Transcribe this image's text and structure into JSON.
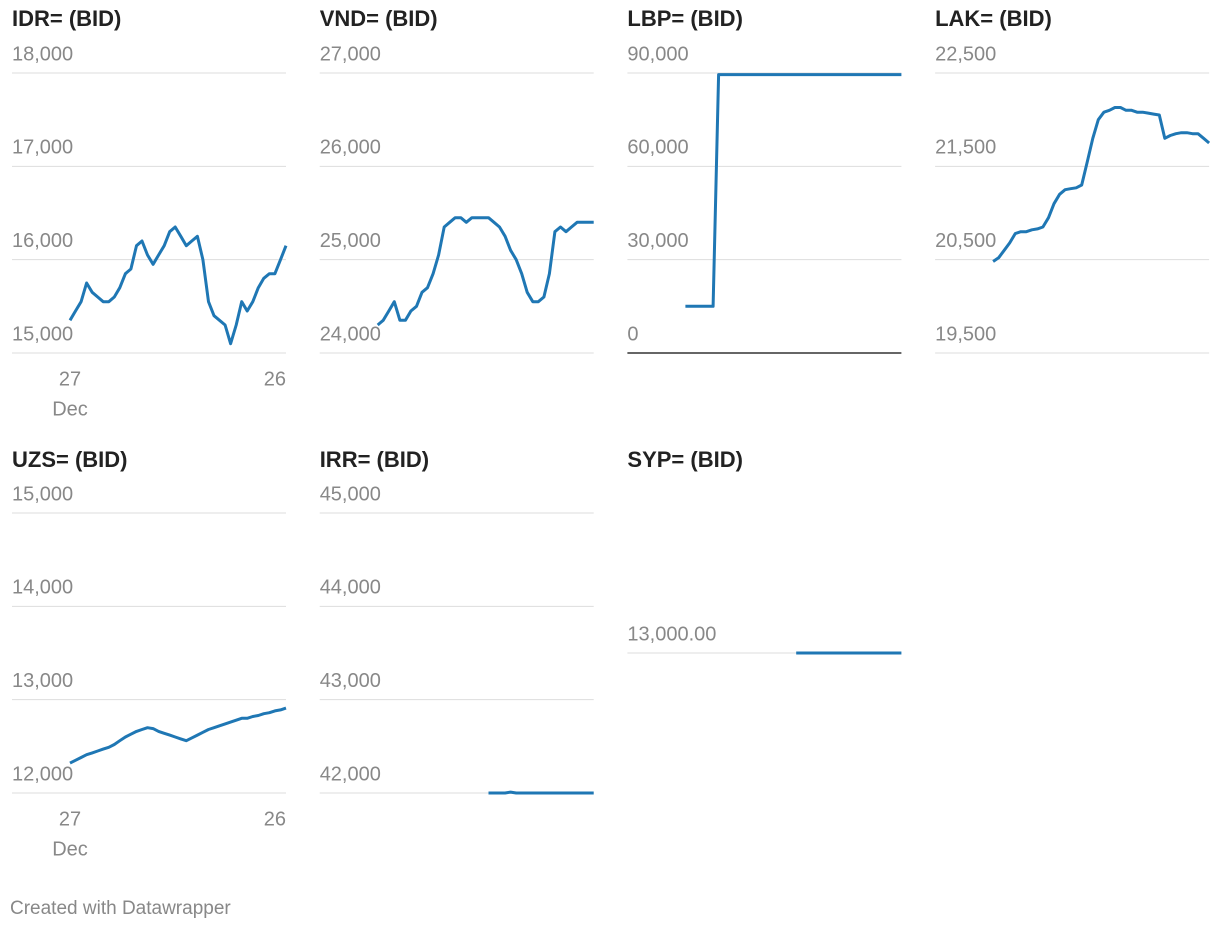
{
  "chart_data": [
    {
      "type": "line",
      "title": "IDR= (BID)",
      "color": "#1f77b4",
      "grid": true,
      "categories": [
        "27",
        null,
        null,
        null,
        null,
        null,
        null,
        null,
        null,
        null,
        null,
        null,
        null,
        null,
        null,
        null,
        null,
        null,
        null,
        null,
        null,
        null,
        null,
        null,
        null,
        null,
        null,
        null,
        null,
        null,
        null,
        null,
        null,
        null,
        null,
        null,
        null,
        null,
        null,
        "26"
      ],
      "x_month": "Dec",
      "values": [
        15350,
        15450,
        15550,
        15750,
        15650,
        15600,
        15550,
        15550,
        15600,
        15700,
        15850,
        15900,
        16150,
        16200,
        16050,
        15950,
        16050,
        16150,
        16300,
        16350,
        16250,
        16150,
        16200,
        16250,
        16000,
        15550,
        15400,
        15350,
        15300,
        15100,
        15300,
        15550,
        15450,
        15550,
        15700,
        15800,
        15850,
        15850,
        16000,
        16150
      ],
      "ylim": [
        15000,
        18000
      ],
      "yticks": [
        {
          "value": 15000,
          "label": "15,000"
        },
        {
          "value": 16000,
          "label": "16,000"
        },
        {
          "value": 17000,
          "label": "17,000"
        },
        {
          "value": 18000,
          "label": "18,000"
        }
      ]
    },
    {
      "type": "line",
      "title": "VND= (BID)",
      "color": "#1f77b4",
      "grid": true,
      "values": [
        24300,
        24350,
        24450,
        24550,
        24350,
        24350,
        24450,
        24500,
        24650,
        24700,
        24850,
        25050,
        25350,
        25400,
        25450,
        25450,
        25400,
        25450,
        25450,
        25450,
        25450,
        25400,
        25350,
        25250,
        25100,
        25000,
        24850,
        24650,
        24550,
        24550,
        24600,
        24850,
        25300,
        25350,
        25300,
        25350,
        25400,
        25400,
        25400,
        25400
      ],
      "ylim": [
        24000,
        27000
      ],
      "yticks": [
        {
          "value": 24000,
          "label": "24,000"
        },
        {
          "value": 25000,
          "label": "25,000"
        },
        {
          "value": 26000,
          "label": "26,000"
        },
        {
          "value": 27000,
          "label": "27,000"
        }
      ]
    },
    {
      "type": "line",
      "title": "LBP= (BID)",
      "color": "#1f77b4",
      "grid": true,
      "values": [
        15000,
        15000,
        15000,
        15000,
        15000,
        15000,
        89500,
        89500,
        89500,
        89500,
        89500,
        89500,
        89500,
        89500,
        89500,
        89500,
        89500,
        89500,
        89500,
        89500,
        89500,
        89500,
        89500,
        89500,
        89500,
        89500,
        89500,
        89500,
        89500,
        89500,
        89500,
        89500,
        89500,
        89500,
        89500,
        89500,
        89500,
        89500,
        89500,
        89500
      ],
      "ylim": [
        0,
        90000
      ],
      "yticks": [
        0,
        {
          "value": 30000,
          "label": "30,000"
        },
        {
          "value": 60000,
          "label": "60,000"
        },
        {
          "value": 90000,
          "label": "90,000"
        }
      ]
    },
    {
      "type": "line",
      "title": "LAK= (BID)",
      "color": "#1f77b4",
      "grid": true,
      "values": [
        20480,
        20520,
        20600,
        20680,
        20780,
        20800,
        20800,
        20820,
        20830,
        20850,
        20950,
        21100,
        21200,
        21250,
        21260,
        21270,
        21300,
        21550,
        21800,
        22000,
        22080,
        22100,
        22130,
        22130,
        22100,
        22100,
        22080,
        22080,
        22070,
        22060,
        22050,
        21800,
        21830,
        21850,
        21860,
        21860,
        21850,
        21850,
        21800,
        21750
      ],
      "ylim": [
        19500,
        22500
      ],
      "yticks": [
        {
          "value": 19500,
          "label": "19,500"
        },
        {
          "value": 20500,
          "label": "20,500"
        },
        {
          "value": 21500,
          "label": "21,500"
        },
        {
          "value": 22500,
          "label": "22,500"
        }
      ]
    },
    {
      "type": "line",
      "title": "UZS= (BID)",
      "color": "#1f77b4",
      "grid": true,
      "categories": [
        "27",
        null,
        null,
        null,
        null,
        null,
        null,
        null,
        null,
        null,
        null,
        null,
        null,
        null,
        null,
        null,
        null,
        null,
        null,
        null,
        null,
        null,
        null,
        null,
        null,
        null,
        null,
        null,
        null,
        null,
        null,
        null,
        null,
        null,
        null,
        null,
        null,
        null,
        null,
        "26"
      ],
      "x_month": "Dec",
      "values": [
        12320,
        12350,
        12380,
        12410,
        12430,
        12450,
        12470,
        12490,
        12520,
        12560,
        12600,
        12630,
        12660,
        12680,
        12700,
        12690,
        12660,
        12640,
        12620,
        12600,
        12580,
        12560,
        12590,
        12620,
        12650,
        12680,
        12700,
        12720,
        12740,
        12760,
        12780,
        12800,
        12800,
        12820,
        12830,
        12850,
        12860,
        12880,
        12890,
        12910
      ],
      "ylim": [
        12000,
        15000
      ],
      "yticks": [
        {
          "value": 12000,
          "label": "12,000"
        },
        {
          "value": 13000,
          "label": "13,000"
        },
        {
          "value": 14000,
          "label": "14,000"
        },
        {
          "value": 15000,
          "label": "15,000"
        }
      ]
    },
    {
      "type": "line",
      "title": "IRR= (BID)",
      "color": "#1f77b4",
      "grid": true,
      "values": [
        null,
        null,
        null,
        null,
        null,
        null,
        null,
        null,
        null,
        null,
        null,
        null,
        null,
        null,
        null,
        null,
        null,
        null,
        null,
        null,
        42000,
        42000,
        42000,
        42000,
        42010,
        42000,
        42000,
        42000,
        42000,
        42000,
        42000,
        42000,
        42000,
        42000,
        42000,
        42000,
        42000,
        42000,
        42000,
        42000
      ],
      "ylim": [
        42000,
        45000
      ],
      "yticks": [
        {
          "value": 42000,
          "label": "42,000"
        },
        {
          "value": 43000,
          "label": "43,000"
        },
        {
          "value": 44000,
          "label": "44,000"
        },
        {
          "value": 45000,
          "label": "45,000"
        }
      ]
    },
    {
      "type": "line",
      "title": "SYP= (BID)",
      "color": "#1f77b4",
      "grid": true,
      "values": [
        null,
        null,
        null,
        null,
        null,
        null,
        null,
        null,
        null,
        null,
        null,
        null,
        null,
        null,
        null,
        null,
        null,
        null,
        null,
        null,
        13000,
        13000,
        13000,
        13000,
        13000,
        13000,
        13000,
        13000,
        13000,
        13000,
        13000,
        13000,
        13000,
        13000,
        13000,
        13000,
        13000,
        13000,
        13000,
        13000
      ],
      "ylim": [
        12000,
        14000
      ],
      "yticks": [
        {
          "value": 13000,
          "label": "13,000.00"
        }
      ]
    }
  ],
  "footer": "Created with Datawrapper"
}
